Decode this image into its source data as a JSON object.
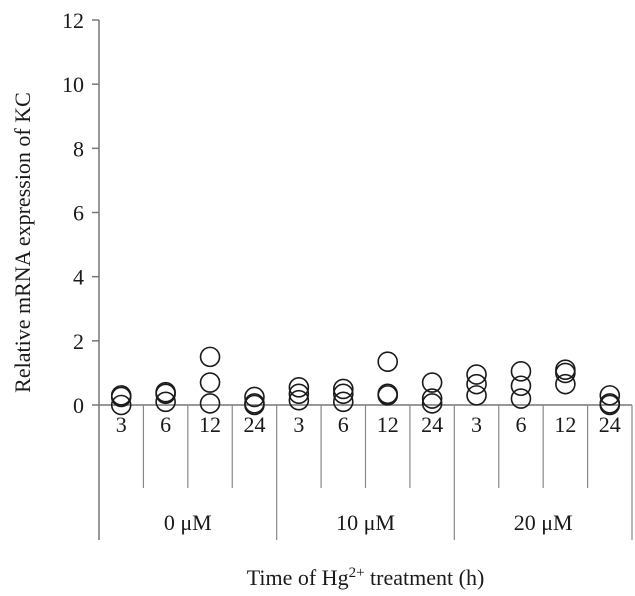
{
  "chart_data": {
    "type": "scatter",
    "title": "",
    "ylabel": "Relative mRNA expression of KC",
    "xlabel_parts": {
      "pre": "Time of Hg",
      "sup": "2+",
      "post": " treatment (h)"
    },
    "ylim": [
      0,
      12
    ],
    "yticks": [
      0,
      2,
      4,
      6,
      8,
      10,
      12
    ],
    "groups": [
      {
        "label": "0 μM",
        "times": [
          "3",
          "6",
          "12",
          "24"
        ]
      },
      {
        "label": "10 μM",
        "times": [
          "3",
          "6",
          "12",
          "24"
        ]
      },
      {
        "label": "20 μM",
        "times": [
          "3",
          "6",
          "12",
          "24"
        ]
      }
    ],
    "points": [
      [
        [
          0.3,
          0.25,
          0.0
        ],
        [
          0.4,
          0.35,
          0.1
        ],
        [
          1.5,
          0.7,
          0.05
        ],
        [
          0.25,
          0.05,
          0.0
        ]
      ],
      [
        [
          0.55,
          0.35,
          0.15
        ],
        [
          0.5,
          0.35,
          0.1
        ],
        [
          1.35,
          0.3,
          0.35
        ],
        [
          0.7,
          0.2,
          0.05
        ]
      ],
      [
        [
          0.95,
          0.65,
          0.3
        ],
        [
          1.05,
          0.6,
          0.2
        ],
        [
          1.1,
          1.0,
          0.65
        ],
        [
          0.3,
          0.05,
          0.0
        ]
      ]
    ],
    "grid": false,
    "legend": "none"
  }
}
